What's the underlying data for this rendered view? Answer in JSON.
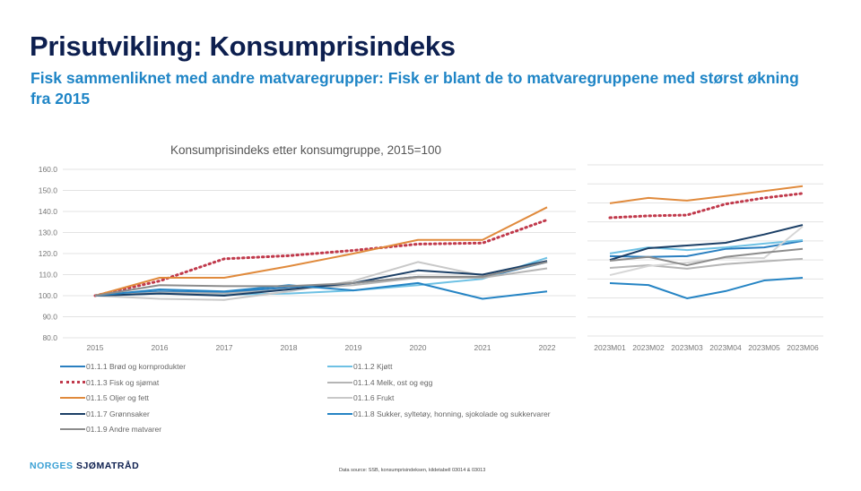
{
  "header": {
    "title": "Prisutvikling: Konsumprisindeks",
    "subtitle": "Fisk sammenliknet med andre matvaregrupper: Fisk er blant de to matvaregruppene med størst økning fra 2015"
  },
  "footer": {
    "logo_part1": "NORGES ",
    "logo_part2": "SJØMATRÅD",
    "source": "Data source: SSB, konsumprisindeksen, kildetabell 03014 & 03013"
  },
  "chart_data": [
    {
      "type": "line",
      "title": "Konsumprisindeks etter konsumgruppe, 2015=100",
      "xlabel": "",
      "ylabel": "",
      "x": [
        "2015",
        "2016",
        "2017",
        "2018",
        "2019",
        "2020",
        "2021",
        "2022"
      ],
      "ylim": [
        80,
        160
      ],
      "yticks": [
        "80.0",
        "90.0",
        "100.0",
        "110.0",
        "120.0",
        "130.0",
        "140.0",
        "150.0",
        "160.0"
      ],
      "ytick_values": [
        80,
        90,
        100,
        110,
        120,
        130,
        140,
        150,
        160
      ],
      "grid": true,
      "legend": "bottom",
      "series": [
        {
          "name": "01.1.1 Brød og kornprodukter",
          "color": "#2a7fc0",
          "style": "solid",
          "values": [
            100,
            102,
            101.5,
            104,
            106,
            109,
            108.5,
            116
          ]
        },
        {
          "name": "01.1.2 Kjøtt",
          "color": "#6ec1e4",
          "style": "solid",
          "values": [
            100,
            101,
            100.5,
            101,
            102.5,
            105,
            108,
            118
          ]
        },
        {
          "name": "01.1.3 Fisk og sjømat",
          "color": "#c0394b",
          "style": "dotted",
          "values": [
            100,
            107,
            117.5,
            119,
            121.5,
            124.5,
            125,
            136
          ]
        },
        {
          "name": "01.1.4 Melk, ost og egg",
          "color": "#b5b5b5",
          "style": "solid",
          "values": [
            100,
            101.5,
            101,
            103,
            105,
            108.5,
            108.5,
            113
          ]
        },
        {
          "name": "01.1.5 Oljer og fett",
          "color": "#e08a3c",
          "style": "solid",
          "values": [
            100,
            108.5,
            108.5,
            114,
            120,
            126.5,
            126.5,
            142
          ]
        },
        {
          "name": "01.1.6 Frukt",
          "color": "#c8c8c8",
          "style": "solid",
          "values": [
            100,
            98.5,
            98,
            102,
            107,
            116,
            109.5,
            116
          ]
        },
        {
          "name": "01.1.7 Grønnsaker",
          "color": "#1b3f66",
          "style": "solid",
          "values": [
            100,
            101,
            100,
            103,
            106,
            112,
            110,
            116.5
          ]
        },
        {
          "name": "01.1.8 Sukker, syltetøy, honning, sjokolade og sukkervarer",
          "color": "#2584c4",
          "style": "solid",
          "values": [
            100,
            103,
            102,
            105,
            102.5,
            106,
            98.5,
            102
          ]
        },
        {
          "name": "01.1.9 Andre matvarer",
          "color": "#8c8c8c",
          "style": "solid",
          "values": [
            100,
            105,
            104.5,
            104.5,
            106,
            109,
            109,
            116
          ]
        }
      ]
    },
    {
      "type": "line",
      "title": "",
      "xlabel": "",
      "ylabel": "",
      "x": [
        "2023M01",
        "2023M02",
        "2023M03",
        "2023M04",
        "2023M05",
        "2023M06"
      ],
      "ylim": [
        100,
        145
      ],
      "ytick_values": [
        100,
        105,
        110,
        115,
        120,
        125,
        130,
        135,
        140,
        145
      ],
      "yticks_visible": false,
      "grid": true,
      "series": [
        {
          "name": "01.1.1 Brød og kornprodukter",
          "color": "#2a7fc0",
          "style": "solid",
          "values": [
            121,
            120.8,
            121,
            122.9,
            123.3,
            125
          ]
        },
        {
          "name": "01.1.2 Kjøtt",
          "color": "#6ec1e4",
          "style": "solid",
          "values": [
            121.7,
            123.3,
            122.6,
            123.3,
            124.3,
            125.2
          ]
        },
        {
          "name": "01.1.3 Fisk og sjømat",
          "color": "#c0394b",
          "style": "dotted",
          "values": [
            131.1,
            131.6,
            131.8,
            134.7,
            136.3,
            137.5
          ]
        },
        {
          "name": "01.1.4 Melk, ost og egg",
          "color": "#b5b5b5",
          "style": "solid",
          "values": [
            117.9,
            118.6,
            117.7,
            118.9,
            119.6,
            120.3
          ]
        },
        {
          "name": "01.1.5 Oljer og fett",
          "color": "#e08a3c",
          "style": "solid",
          "values": [
            134.9,
            136.3,
            135.6,
            136.8,
            138.1,
            139.4
          ]
        },
        {
          "name": "01.1.6 Frukt",
          "color": "#d6d6d6",
          "style": "solid",
          "values": [
            116,
            118.4,
            119.3,
            120.5,
            120.5,
            128.8
          ]
        },
        {
          "name": "01.1.7 Grønnsaker",
          "color": "#1b3f66",
          "style": "solid",
          "values": [
            120,
            123.1,
            123.8,
            124.5,
            126.7,
            129.2
          ]
        },
        {
          "name": "01.1.8 Sukker, syltetøy, honning, sjokolade og sukkervarer",
          "color": "#2584c4",
          "style": "solid",
          "values": [
            113.9,
            113.4,
            109.9,
            111.8,
            114.6,
            115.3
          ]
        },
        {
          "name": "01.1.9 Andre matvarer",
          "color": "#8c8c8c",
          "style": "solid",
          "values": [
            119.8,
            120.8,
            118.6,
            120.8,
            121.9,
            122.9
          ]
        }
      ]
    }
  ]
}
